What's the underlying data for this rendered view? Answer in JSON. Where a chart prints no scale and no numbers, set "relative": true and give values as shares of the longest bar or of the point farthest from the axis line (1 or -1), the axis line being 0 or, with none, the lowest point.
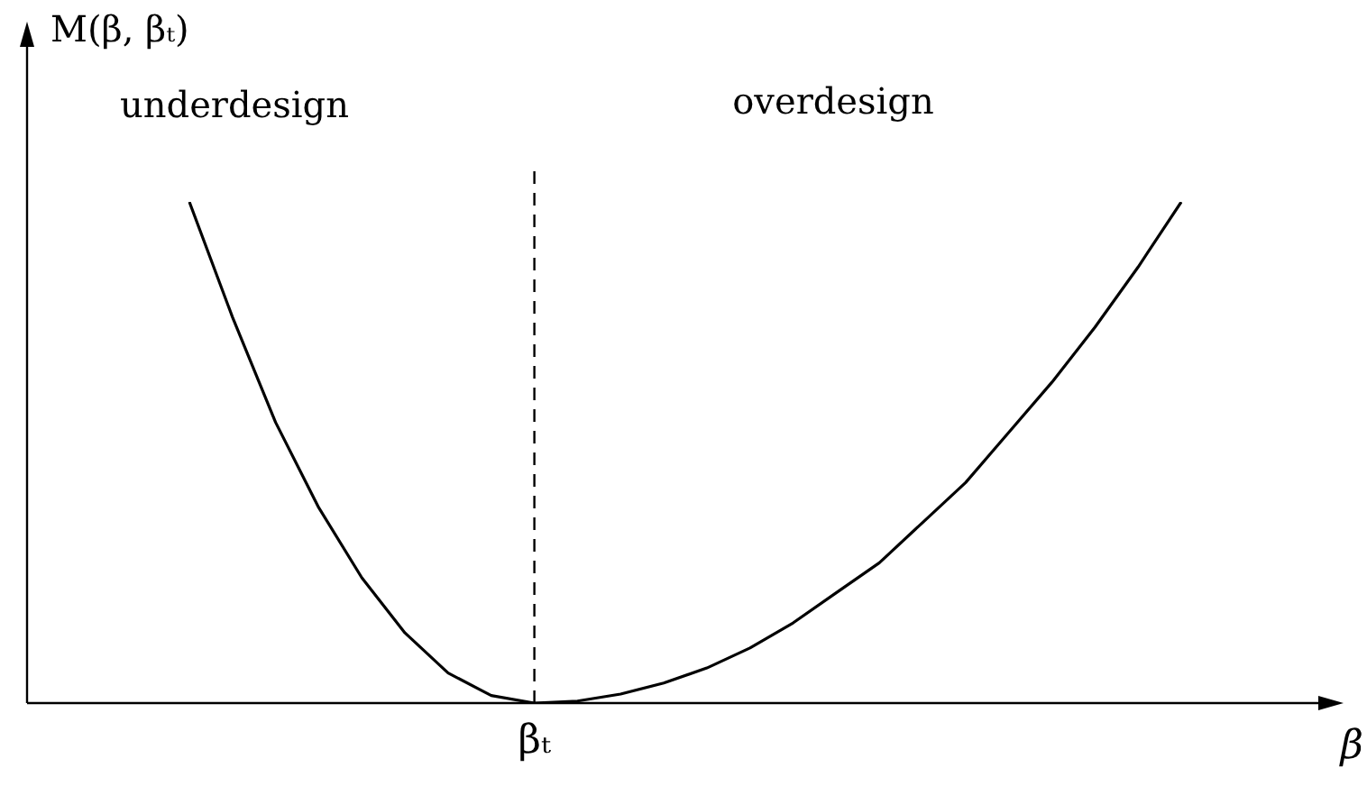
{
  "chart_data": {
    "type": "line",
    "relative": true,
    "xlabel": "β",
    "ylabel": "M(β, βₜ)",
    "categories": [
      null,
      null,
      null,
      null,
      null,
      null,
      null,
      null,
      null,
      null,
      null,
      null,
      null,
      null,
      null,
      null,
      null,
      null,
      null,
      null,
      null,
      null,
      null,
      null
    ],
    "series": [
      {
        "color": "#000000",
        "values": [
          1,
          0.77,
          0.56,
          0.39,
          0.25,
          0.14,
          0.06,
          0.015,
          0,
          0.004,
          0.018,
          0.04,
          0.07,
          0.11,
          0.16,
          0.22,
          0.28,
          0.36,
          0.44,
          0.54,
          0.64,
          0.75,
          0.87,
          1
        ]
      }
    ],
    "ref_lines": [
      {
        "axis": "x",
        "color": "#000000",
        "line_style": "dashed"
      }
    ],
    "annotations": [
      "underdesign",
      "overdesign",
      "βₜ"
    ],
    "legend": false,
    "marker": "none",
    "line_style": "solid"
  }
}
